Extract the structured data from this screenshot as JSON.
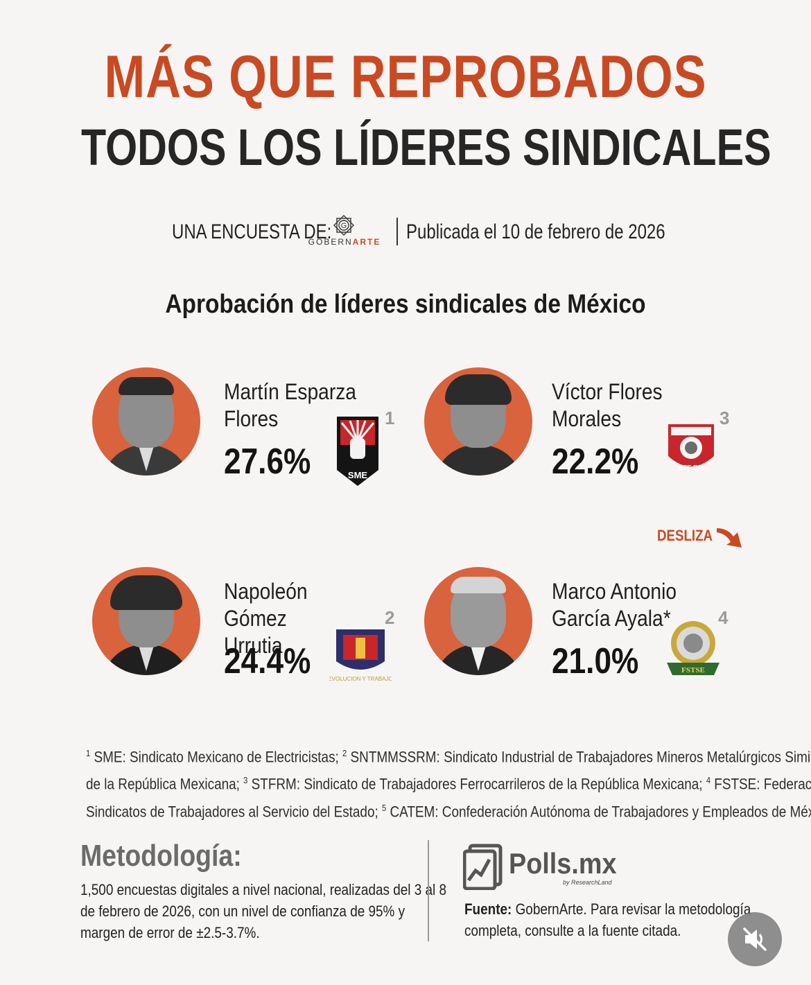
{
  "header": {
    "title_line1": "MÁS QUE REPROBADOS",
    "title_line2": "TODOS LOS LÍDERES SINDICALES"
  },
  "byline": {
    "label": "UNA ENCUESTA DE:",
    "brand_prefix": "GOBERN",
    "brand_suffix": "ARTE",
    "brand_letter": "G",
    "published": "Publicada el 10 de febrero de 2026"
  },
  "subtitle": "Aprobación de líderes sindicales de México",
  "leaders": [
    {
      "name_line1": "Martín Esparza",
      "name_line2": "Flores",
      "approval": "27.6%",
      "approval_value": 27.6,
      "footnote": "1"
    },
    {
      "name_line1": "Víctor Flores",
      "name_line2": "Morales",
      "approval": "22.2%",
      "approval_value": 22.2,
      "footnote": "3"
    },
    {
      "name_line1": "Napoleón Gómez",
      "name_line2": "Urrutia",
      "approval": "24.4%",
      "approval_value": 24.4,
      "footnote": "2"
    },
    {
      "name_line1": "Marco Antonio",
      "name_line2": "García Ayala*",
      "approval": "21.0%",
      "approval_value": 21.0,
      "footnote": "4"
    }
  ],
  "logos": {
    "l1": "SME",
    "l2_sub": "EVOLUCION Y TRABAJO",
    "l3": "STF RM",
    "l4": "FSTSE"
  },
  "swipe_label": "DESLIZA",
  "footnotes": {
    "n1": "1",
    "t1": " SME: Sindicato Mexicano de Electricistas; ",
    "n2": "2",
    "t2": " SNTMMSSRM: Sindicato Industrial de Trabajadores Mineros Metalúrgicos Similares",
    "t2b": "de la República Mexicana; ",
    "n3": "3",
    "t3": " STFRM: Sindicato de Trabajadores Ferrocarrileros de la República Mexicana; ",
    "n4": "4",
    "t4": " FSTSE: Federación de",
    "t4b": "Sindicatos de Trabajadores al Servicio del Estado; ",
    "n5": "5",
    "t5": " CATEM: Confederación Autónoma de Trabajadores y Empleados de México."
  },
  "methodology": {
    "title": "Metodología:",
    "line1": "1,500 encuestas digitales a nivel nacional, realizadas del 3 al 8",
    "line2": "de febrero de 2026, con un nivel de confianza de 95% y",
    "line3": "margen de error de ±2.5-3.7%."
  },
  "polls": {
    "word": "Polls.mx",
    "sub": "by ResearchLand"
  },
  "source": {
    "label": "Fuente:",
    "line1": " GobernArte. Para revisar la metodología",
    "line2": "completa, consulte a la fuente citada."
  },
  "colors": {
    "accent": "#c94a22",
    "avatar_bg": "#d8633d",
    "background": "#f6f5f3",
    "dark_text": "#262626"
  },
  "icons": {
    "mute": "speaker-muted-icon",
    "swipe": "curved-arrow-right-icon"
  }
}
